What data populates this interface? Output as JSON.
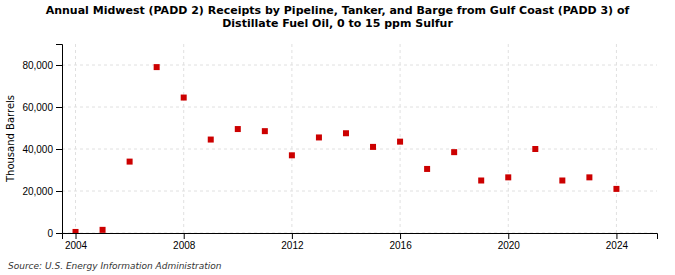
{
  "chart_data": {
    "type": "scatter",
    "title": "Annual Midwest (PADD 2) Receipts by Pipeline, Tanker, and Barge from Gulf Coast (PADD 3) of\nDistillate Fuel Oil, 0 to 15 ppm Sulfur",
    "ylabel": "Thousand Barrels",
    "source": "Source: U.S. Energy Information Administration",
    "x": [
      2004,
      2005,
      2006,
      2007,
      2008,
      2009,
      2010,
      2011,
      2012,
      2013,
      2014,
      2015,
      2016,
      2017,
      2018,
      2019,
      2020,
      2021,
      2022,
      2023,
      2024
    ],
    "values": [
      500,
      1500,
      34000,
      79000,
      64500,
      44500,
      49500,
      48500,
      37000,
      45500,
      47500,
      41000,
      43500,
      30500,
      38500,
      25000,
      26500,
      40000,
      25000,
      26500,
      21000
    ],
    "color": "#cc0000",
    "marker": "square",
    "xlim": [
      2003.5,
      2025.5
    ],
    "ylim": [
      0,
      90000
    ],
    "xticks": [
      2004,
      2008,
      2012,
      2016,
      2020,
      2024
    ],
    "yticks": [
      0,
      {
        "value": 20000,
        "label": "20,000"
      },
      {
        "value": 40000,
        "label": "40,000"
      },
      {
        "value": 60000,
        "label": "60,000"
      },
      {
        "value": 80000,
        "label": "80,000"
      }
    ],
    "grid": true
  }
}
